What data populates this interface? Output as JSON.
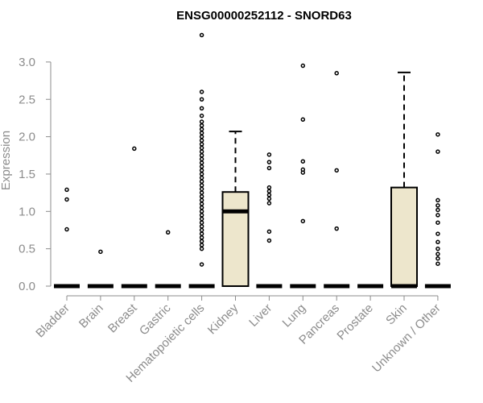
{
  "chart_data": {
    "type": "box",
    "title": "ENSG00000252112 - SNORD63",
    "xlabel": "",
    "ylabel": "Expression",
    "ylim": [
      0,
      3.5
    ],
    "yticks": [
      "0.0",
      "0.5",
      "1.0",
      "1.5",
      "2.0",
      "2.5",
      "3.0"
    ],
    "categories": [
      "Bladder",
      "Brain",
      "Breast",
      "Gastric",
      "Hematopoietic cells",
      "Kidney",
      "Liver",
      "Lung",
      "Pancreas",
      "Prostate",
      "Skin",
      "Unknown / Other"
    ],
    "box_fill": "#ede6cc",
    "series": [
      {
        "q1": 0,
        "median": 0,
        "q3": 0,
        "whisker_low": 0,
        "whisker_high": 0,
        "outliers": [
          0.76,
          1.16,
          1.29
        ]
      },
      {
        "q1": 0,
        "median": 0,
        "q3": 0,
        "whisker_low": 0,
        "whisker_high": 0,
        "outliers": [
          0.46
        ]
      },
      {
        "q1": 0,
        "median": 0,
        "q3": 0,
        "whisker_low": 0,
        "whisker_high": 0,
        "outliers": [
          1.84
        ]
      },
      {
        "q1": 0,
        "median": 0,
        "q3": 0,
        "whisker_low": 0,
        "whisker_high": 0,
        "outliers": [
          0.72
        ]
      },
      {
        "q1": 0,
        "median": 0,
        "q3": 0,
        "whisker_low": 0,
        "whisker_high": 0,
        "outliers": [
          0.29,
          0.5,
          0.55,
          0.6,
          0.65,
          0.7,
          0.75,
          0.8,
          0.85,
          0.9,
          0.95,
          1.0,
          1.05,
          1.1,
          1.15,
          1.2,
          1.25,
          1.3,
          1.35,
          1.4,
          1.45,
          1.5,
          1.55,
          1.6,
          1.65,
          1.7,
          1.75,
          1.8,
          1.85,
          1.9,
          1.95,
          2.0,
          2.05,
          2.1,
          2.15,
          2.2,
          2.28,
          2.38,
          2.5,
          2.6,
          3.36
        ]
      },
      {
        "q1": 0,
        "median": 1.0,
        "q3": 1.26,
        "whisker_low": 0,
        "whisker_high": 2.07,
        "outliers": []
      },
      {
        "q1": 0,
        "median": 0,
        "q3": 0,
        "whisker_low": 0,
        "whisker_high": 0,
        "outliers": [
          0.61,
          0.73,
          1.11,
          1.17,
          1.22,
          1.27,
          1.32,
          1.58,
          1.66,
          1.76
        ]
      },
      {
        "q1": 0,
        "median": 0,
        "q3": 0,
        "whisker_low": 0,
        "whisker_high": 0,
        "outliers": [
          0.87,
          1.52,
          1.56,
          1.67,
          2.23,
          2.95
        ]
      },
      {
        "q1": 0,
        "median": 0,
        "q3": 0,
        "whisker_low": 0,
        "whisker_high": 0,
        "outliers": [
          0.77,
          1.55,
          2.85
        ]
      },
      {
        "q1": 0,
        "median": 0,
        "q3": 0,
        "whisker_low": 0,
        "whisker_high": 0,
        "outliers": []
      },
      {
        "q1": 0,
        "median": 0,
        "q3": 1.32,
        "whisker_low": 0,
        "whisker_high": 2.86,
        "outliers": []
      },
      {
        "q1": 0,
        "median": 0,
        "q3": 0,
        "whisker_low": 0,
        "whisker_high": 0,
        "outliers": [
          0.3,
          0.37,
          0.43,
          0.5,
          0.59,
          0.7,
          0.85,
          0.95,
          1.02,
          1.08,
          1.15,
          1.8,
          2.03
        ]
      }
    ]
  }
}
